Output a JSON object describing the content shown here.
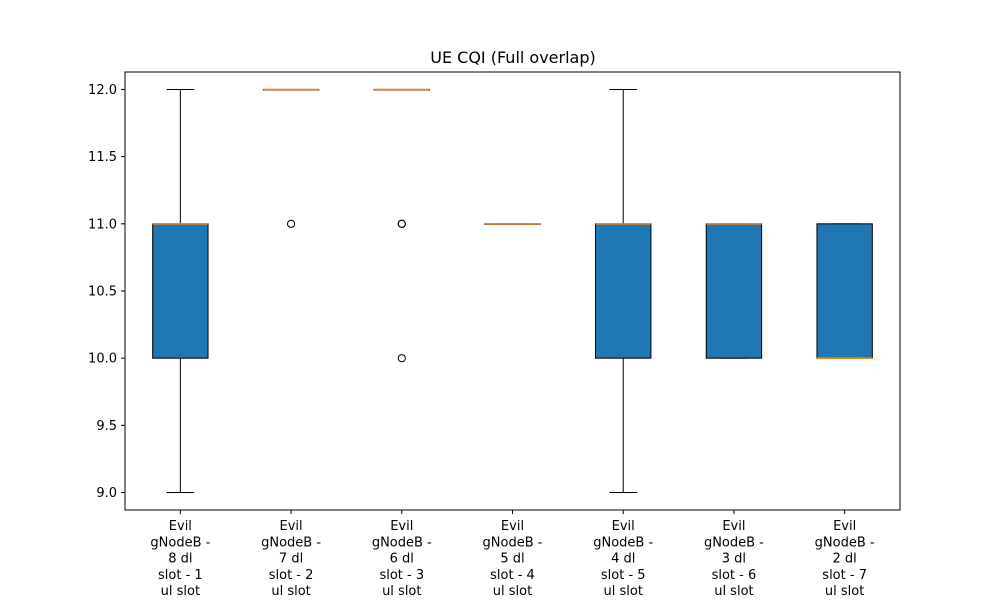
{
  "chart_data": {
    "type": "box",
    "title": "UE CQI (Full overlap)",
    "xlabel": "",
    "ylabel": "",
    "ylim": [
      8.87,
      12.13
    ],
    "yticks": [
      "9.0",
      "9.5",
      "10.0",
      "10.5",
      "11.0",
      "11.5",
      "12.0"
    ],
    "ytick_values": [
      9.0,
      9.5,
      10.0,
      10.5,
      11.0,
      11.5,
      12.0
    ],
    "grid": false,
    "box_color": "#1f77b4",
    "median_color": "#ff7f0e",
    "categories": [
      [
        "Evil",
        "gNodeB -",
        "8 dl",
        "slot - 1",
        "ul slot"
      ],
      [
        "Evil",
        "gNodeB -",
        "7 dl",
        "slot - 2",
        "ul slot"
      ],
      [
        "Evil",
        "gNodeB -",
        "6 dl",
        "slot - 3",
        "ul slot"
      ],
      [
        "Evil",
        "gNodeB -",
        "5 dl",
        "slot - 4",
        "ul slot"
      ],
      [
        "Evil",
        "gNodeB -",
        "4 dl",
        "slot - 5",
        "ul slot"
      ],
      [
        "Evil",
        "gNodeB -",
        "3 dl",
        "slot - 6",
        "ul slot"
      ],
      [
        "Evil",
        "gNodeB -",
        "2 dl",
        "slot - 7",
        "ul slot"
      ]
    ],
    "boxes": [
      {
        "whisker_low": 9.0,
        "q1": 10.0,
        "median": 11.0,
        "q3": 11.0,
        "whisker_high": 12.0,
        "outliers": []
      },
      {
        "whisker_low": 12.0,
        "q1": 12.0,
        "median": 12.0,
        "q3": 12.0,
        "whisker_high": 12.0,
        "outliers": [
          11.0
        ]
      },
      {
        "whisker_low": 12.0,
        "q1": 12.0,
        "median": 12.0,
        "q3": 12.0,
        "whisker_high": 12.0,
        "outliers": [
          11.0,
          11.0,
          10.0
        ]
      },
      {
        "whisker_low": 11.0,
        "q1": 11.0,
        "median": 11.0,
        "q3": 11.0,
        "whisker_high": 11.0,
        "outliers": []
      },
      {
        "whisker_low": 9.0,
        "q1": 10.0,
        "median": 11.0,
        "q3": 11.0,
        "whisker_high": 12.0,
        "outliers": []
      },
      {
        "whisker_low": 10.0,
        "q1": 10.0,
        "median": 11.0,
        "q3": 11.0,
        "whisker_high": 11.0,
        "outliers": []
      },
      {
        "whisker_low": 10.0,
        "q1": 10.0,
        "median": 10.0,
        "q3": 11.0,
        "whisker_high": 11.0,
        "outliers": []
      }
    ]
  }
}
